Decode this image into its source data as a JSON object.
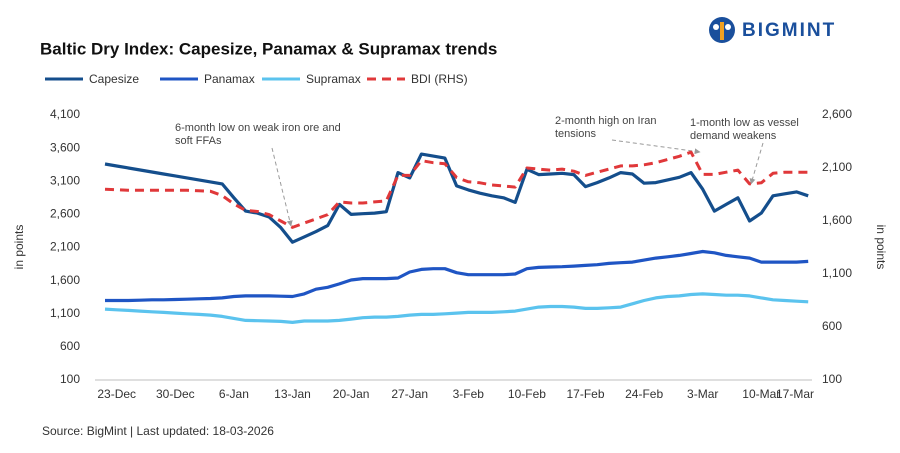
{
  "chart_data": {
    "type": "line",
    "title": "Baltic Dry Index: Capesize, Panamax & Supramax trends",
    "logo": "BIGMINT",
    "source": "Source: BigMint | Last updated: 18-03-2026",
    "ylabel": "in points",
    "y2label": "in points",
    "categories": [
      null,
      "23-Dec",
      null,
      null,
      null,
      null,
      "30-Dec",
      null,
      null,
      null,
      null,
      "6-Jan",
      null,
      null,
      null,
      null,
      "13-Jan",
      null,
      null,
      null,
      null,
      "20-Jan",
      null,
      null,
      null,
      null,
      "27-Jan",
      null,
      null,
      null,
      null,
      "3-Feb",
      null,
      null,
      null,
      null,
      "10-Feb",
      null,
      null,
      null,
      null,
      "17-Feb",
      null,
      null,
      null,
      null,
      "24-Feb",
      null,
      null,
      null,
      null,
      "3-Mar",
      null,
      null,
      null,
      null,
      "10-Mar",
      null,
      null,
      null,
      null,
      "17-Mar"
    ],
    "series": [
      {
        "name": "Capesize",
        "color": "#144e8c",
        "values": [
          3360,
          3330,
          3300,
          3270,
          3240,
          3210,
          3180,
          3150,
          3120,
          3090,
          3060,
          2850,
          2650,
          2620,
          2560,
          2400,
          2180,
          2260,
          2340,
          2430,
          2750,
          2600,
          2610,
          2620,
          2640,
          3230,
          3150,
          3510,
          3480,
          3450,
          3030,
          2970,
          2920,
          2880,
          2850,
          2780,
          3280,
          3200,
          3210,
          3220,
          3200,
          3020,
          3080,
          3150,
          3230,
          3210,
          3070,
          3080,
          3120,
          3160,
          3230,
          2980,
          2650,
          2750,
          2850,
          2500,
          2620,
          2880,
          2910,
          2940,
          2880,
          null
        ]
      },
      {
        "name": "Panamax",
        "color": "#1f55c4",
        "values": [
          1300,
          1300,
          1300,
          1305,
          1310,
          1310,
          1315,
          1320,
          1325,
          1330,
          1340,
          1360,
          1370,
          1370,
          1370,
          1365,
          1360,
          1400,
          1470,
          1500,
          1550,
          1610,
          1630,
          1630,
          1630,
          1640,
          1730,
          1770,
          1780,
          1780,
          1720,
          1690,
          1690,
          1690,
          1690,
          1700,
          1780,
          1800,
          1805,
          1810,
          1820,
          1830,
          1840,
          1860,
          1870,
          1880,
          1910,
          1940,
          1960,
          1980,
          2010,
          2040,
          2020,
          1980,
          1960,
          1940,
          1880,
          1880,
          1880,
          1880,
          1890,
          null
        ]
      },
      {
        "name": "Supramax",
        "color": "#5bc3ee",
        "values": [
          1170,
          1160,
          1150,
          1140,
          1130,
          1120,
          1110,
          1100,
          1090,
          1080,
          1060,
          1030,
          1000,
          995,
          990,
          985,
          970,
          990,
          990,
          990,
          1000,
          1020,
          1040,
          1050,
          1050,
          1060,
          1080,
          1090,
          1090,
          1100,
          1110,
          1120,
          1120,
          1120,
          1130,
          1140,
          1170,
          1200,
          1210,
          1210,
          1200,
          1180,
          1180,
          1190,
          1200,
          1250,
          1300,
          1340,
          1360,
          1370,
          1390,
          1400,
          1390,
          1380,
          1380,
          1370,
          1340,
          1310,
          1300,
          1290,
          1280,
          null
        ]
      },
      {
        "name": "BDI (RHS)",
        "color": "#e0383a",
        "dashed": true,
        "axis": "y2",
        "values": [
          1900,
          1895,
          1890,
          1890,
          1890,
          1890,
          1890,
          1890,
          1885,
          1880,
          1840,
          1760,
          1700,
          1690,
          1660,
          1600,
          1540,
          1580,
          1620,
          1660,
          1780,
          1770,
          1770,
          1780,
          1790,
          2030,
          2030,
          2170,
          2150,
          2140,
          2010,
          1970,
          1960,
          1940,
          1930,
          1920,
          2100,
          2090,
          2080,
          2090,
          2070,
          2030,
          2060,
          2090,
          2120,
          2120,
          2130,
          2150,
          2180,
          2210,
          2250,
          2040,
          2040,
          2060,
          2080,
          1950,
          1960,
          2050,
          2060,
          2060,
          2060,
          null
        ]
      }
    ],
    "ylim": [
      100,
      4100
    ],
    "yticks": [
      100,
      600,
      {
        "value": 1100,
        "label": "1,100"
      },
      {
        "value": 1600,
        "label": "1,600"
      },
      {
        "value": 2100,
        "label": "2,100"
      },
      {
        "value": 2600,
        "label": "2,600"
      },
      {
        "value": 3100,
        "label": "3,100"
      },
      {
        "value": 3600,
        "label": "3,600"
      },
      {
        "value": 4100,
        "label": "4,100"
      }
    ],
    "y2lim": [
      100,
      2600
    ],
    "y2ticks": [
      100,
      600,
      {
        "value": 1100,
        "label": "1,100"
      },
      {
        "value": 1600,
        "label": "1,600"
      },
      {
        "value": 2100,
        "label": "2,100"
      },
      {
        "value": 2600,
        "label": "2,600"
      }
    ],
    "grid": false,
    "annotations": [
      {
        "lines": [
          "6-month low on weak iron ore and",
          "soft FFAs"
        ]
      },
      {
        "lines": [
          "2-month high on Iran",
          "tensions"
        ]
      },
      {
        "lines": [
          "1-month low as vessel",
          "demand weakens"
        ]
      }
    ]
  }
}
